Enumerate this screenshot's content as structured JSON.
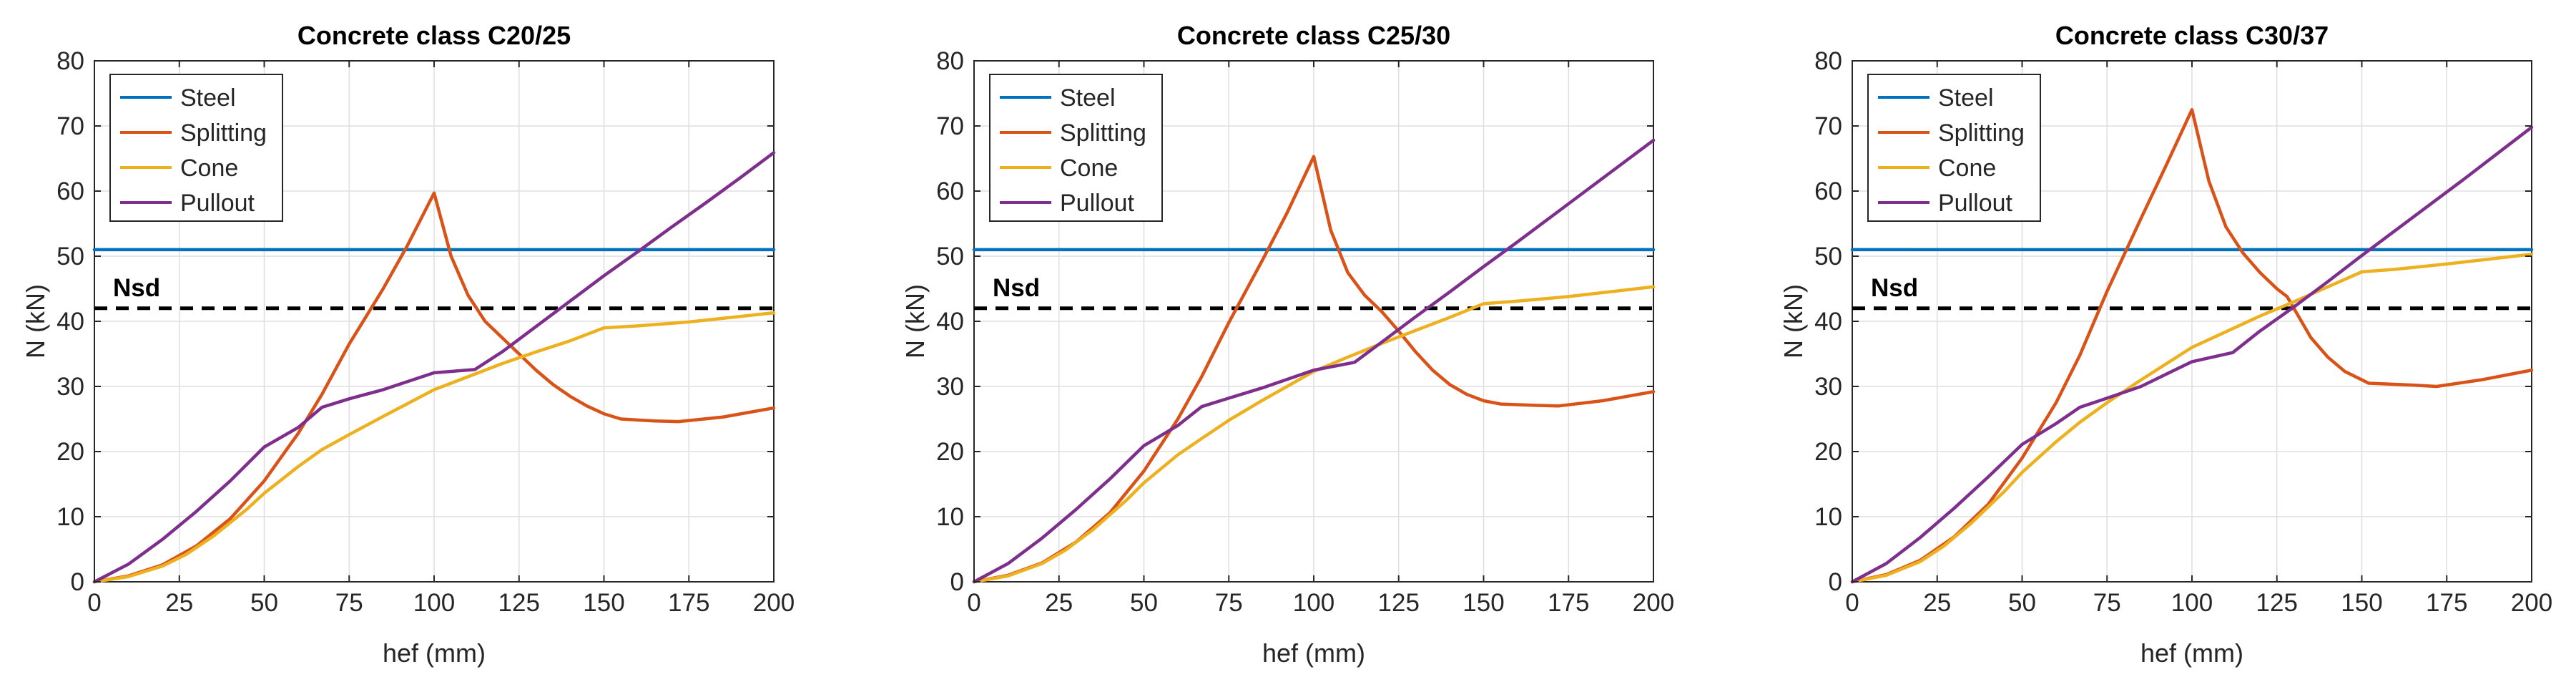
{
  "chart_data": [
    {
      "type": "line",
      "title": "Concrete class C20/25",
      "xlabel": "hef (mm)",
      "ylabel": "N (kN)",
      "xlim": [
        0,
        200
      ],
      "ylim": [
        0,
        80
      ],
      "xticks": [
        0,
        25,
        50,
        75,
        100,
        125,
        150,
        175,
        200
      ],
      "yticks": [
        0,
        10,
        20,
        30,
        40,
        50,
        60,
        70,
        80
      ],
      "grid": true,
      "legend_position": "top-left",
      "series": [
        {
          "name": "Steel",
          "color": "#0072BD",
          "x": [
            0,
            200
          ],
          "y": [
            51,
            51
          ]
        },
        {
          "name": "Splitting",
          "color": "#D95319",
          "x": [
            0,
            10,
            20,
            30,
            40,
            50,
            60,
            67,
            75,
            85,
            92,
            100,
            105,
            110,
            115,
            120,
            125,
            130,
            135,
            140,
            145,
            150,
            155,
            165,
            172,
            185,
            200
          ],
          "y": [
            0,
            0.9,
            2.6,
            5.5,
            9.7,
            15.5,
            22.8,
            28.8,
            36.5,
            45,
            51.5,
            59.7,
            50,
            44,
            40,
            37.5,
            35,
            32.5,
            30.3,
            28.5,
            27,
            25.8,
            25,
            24.7,
            24.6,
            25.3,
            26.7
          ]
        },
        {
          "name": "Cone",
          "color": "#EDB120",
          "x": [
            0,
            10,
            20,
            27,
            35,
            45,
            50,
            60,
            67,
            75,
            85,
            100,
            110,
            120,
            130,
            140,
            150,
            160,
            175,
            200
          ],
          "y": [
            0,
            0.8,
            2.4,
            4.2,
            7,
            11.2,
            13.6,
            17.7,
            20.3,
            22.6,
            25.4,
            29.5,
            31.5,
            33.5,
            35.3,
            37,
            39,
            39.3,
            39.9,
            41.3
          ]
        },
        {
          "name": "Pullout",
          "color": "#7E2F8E",
          "x": [
            0,
            10,
            20,
            30,
            40,
            50,
            60,
            67,
            75,
            85,
            100,
            112,
            120,
            130,
            140,
            150,
            160,
            170,
            180,
            190,
            200
          ],
          "y": [
            0,
            2.7,
            6.5,
            10.8,
            15.5,
            20.7,
            23.7,
            26.8,
            28.1,
            29.5,
            32.1,
            32.6,
            35.3,
            39.2,
            43.1,
            47,
            50.7,
            54.5,
            58.2,
            62,
            65.9
          ]
        }
      ],
      "reference_line": {
        "label": "Nsd",
        "value": 42,
        "style": "dashed",
        "color": "#000000"
      }
    },
    {
      "type": "line",
      "title": "Concrete class C25/30",
      "xlabel": "hef (mm)",
      "ylabel": "N (kN)",
      "xlim": [
        0,
        200
      ],
      "ylim": [
        0,
        80
      ],
      "xticks": [
        0,
        25,
        50,
        75,
        100,
        125,
        150,
        175,
        200
      ],
      "yticks": [
        0,
        10,
        20,
        30,
        40,
        50,
        60,
        70,
        80
      ],
      "grid": true,
      "legend_position": "top-left",
      "series": [
        {
          "name": "Steel",
          "color": "#0072BD",
          "x": [
            0,
            200
          ],
          "y": [
            51,
            51
          ]
        },
        {
          "name": "Splitting",
          "color": "#D95319",
          "x": [
            0,
            10,
            20,
            30,
            40,
            50,
            60,
            67,
            75,
            85,
            92,
            100,
            105,
            110,
            115,
            120,
            125,
            130,
            135,
            140,
            145,
            150,
            155,
            165,
            172,
            185,
            200
          ],
          "y": [
            0,
            1,
            2.9,
            6.1,
            10.6,
            17,
            25,
            31.5,
            39.8,
            49.5,
            56.5,
            65.3,
            54,
            47.5,
            44,
            41.5,
            38.5,
            35.3,
            32.5,
            30.3,
            28.8,
            27.8,
            27.3,
            27.1,
            27,
            27.8,
            29.2
          ]
        },
        {
          "name": "Cone",
          "color": "#EDB120",
          "x": [
            0,
            10,
            20,
            27,
            35,
            45,
            50,
            60,
            67,
            75,
            85,
            100,
            110,
            120,
            130,
            140,
            150,
            160,
            175,
            200
          ],
          "y": [
            0,
            0.9,
            2.8,
            4.9,
            8,
            12.6,
            15.2,
            19.5,
            22,
            24.8,
            27.9,
            32.3,
            34.5,
            36.6,
            38.6,
            40.6,
            42.7,
            43.1,
            43.8,
            45.3
          ]
        },
        {
          "name": "Pullout",
          "color": "#7E2F8E",
          "x": [
            0,
            10,
            20,
            30,
            40,
            50,
            60,
            67,
            75,
            85,
            100,
            112,
            120,
            130,
            140,
            150,
            160,
            170,
            180,
            190,
            200
          ],
          "y": [
            0,
            2.8,
            6.7,
            11.1,
            15.8,
            20.9,
            24,
            26.9,
            28.2,
            29.8,
            32.5,
            33.7,
            36.8,
            40.7,
            44.5,
            48.4,
            52.2,
            56.1,
            60,
            63.9,
            67.8
          ]
        }
      ],
      "reference_line": {
        "label": "Nsd",
        "value": 42,
        "style": "dashed",
        "color": "#000000"
      }
    },
    {
      "type": "line",
      "title": "Concrete class C30/37",
      "xlabel": "hef (mm)",
      "ylabel": "N (kN)",
      "xlim": [
        0,
        200
      ],
      "ylim": [
        0,
        80
      ],
      "xticks": [
        0,
        25,
        50,
        75,
        100,
        125,
        150,
        175,
        200
      ],
      "yticks": [
        0,
        10,
        20,
        30,
        40,
        50,
        60,
        70,
        80
      ],
      "grid": true,
      "legend_position": "top-left",
      "series": [
        {
          "name": "Steel",
          "color": "#0072BD",
          "x": [
            0,
            200
          ],
          "y": [
            51,
            51
          ]
        },
        {
          "name": "Splitting",
          "color": "#D95319",
          "x": [
            0,
            10,
            20,
            30,
            40,
            50,
            60,
            67,
            75,
            85,
            92,
            100,
            105,
            110,
            115,
            120,
            125,
            128,
            135,
            140,
            145,
            152,
            165,
            172,
            185,
            200
          ],
          "y": [
            0,
            1.1,
            3.3,
            6.9,
            11.9,
            19,
            27.5,
            34.8,
            44.6,
            55.8,
            63.5,
            72.5,
            61.5,
            54.5,
            50.5,
            47.5,
            45,
            43.8,
            37.5,
            34.5,
            32.3,
            30.5,
            30.2,
            30,
            31,
            32.5
          ]
        },
        {
          "name": "Cone",
          "color": "#EDB120",
          "x": [
            0,
            10,
            20,
            27,
            35,
            45,
            50,
            60,
            67,
            75,
            85,
            100,
            110,
            120,
            130,
            140,
            150,
            160,
            175,
            200
          ],
          "y": [
            0,
            1,
            3.1,
            5.5,
            9,
            14,
            16.8,
            21.5,
            24.5,
            27.5,
            31,
            36,
            38.4,
            40.8,
            43,
            45.3,
            47.6,
            48,
            48.8,
            50.3
          ]
        },
        {
          "name": "Pullout",
          "color": "#7E2F8E",
          "x": [
            0,
            10,
            20,
            30,
            40,
            50,
            60,
            67,
            75,
            85,
            100,
            112,
            120,
            130,
            140,
            150,
            160,
            170,
            180,
            190,
            200
          ],
          "y": [
            0,
            2.8,
            6.8,
            11.3,
            16.1,
            21.1,
            24.3,
            26.8,
            28.2,
            30,
            33.8,
            35.2,
            38.5,
            42.2,
            46.1,
            50.1,
            54,
            57.9,
            61.8,
            65.8,
            69.8
          ]
        }
      ],
      "reference_line": {
        "label": "Nsd",
        "value": 42,
        "style": "dashed",
        "color": "#000000"
      }
    }
  ]
}
